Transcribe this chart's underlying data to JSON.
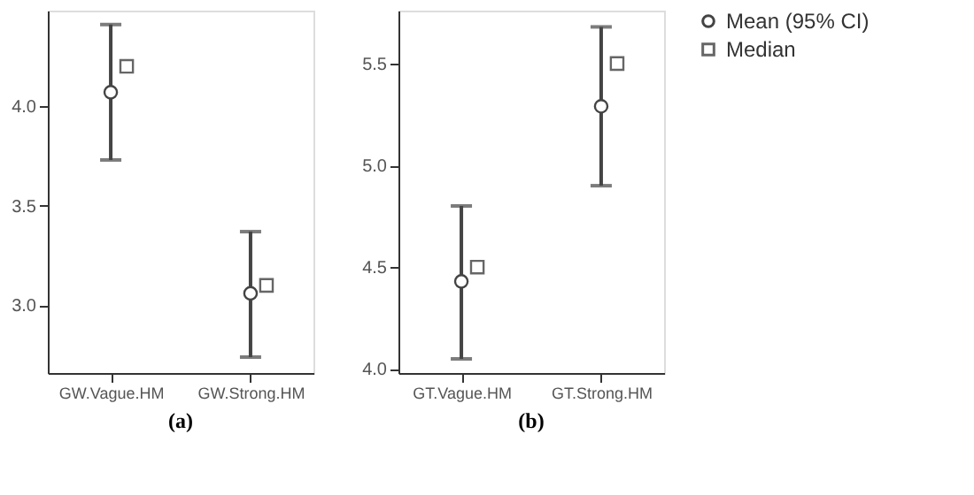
{
  "chart_data": [
    {
      "type": "scatter",
      "categories": [
        "GW.Vague.HM",
        "GW.Strong.HM"
      ],
      "xlabel": "(a)",
      "ylim": [
        2.66,
        4.48
      ],
      "yticks": [
        {
          "value": 3.0,
          "label": "3.0"
        },
        {
          "value": 3.5,
          "label": "3.5"
        },
        {
          "value": 4.0,
          "label": "4.0"
        }
      ],
      "grid": false,
      "legend": "right",
      "series": [
        {
          "name": "Mean (95% CI)",
          "color": "#444444",
          "marker": "circle",
          "values": [
            4.07,
            3.06
          ],
          "errors": [
            [
              3.73,
              4.41
            ],
            [
              2.74,
              3.37
            ]
          ]
        },
        {
          "name": "Median",
          "color": "#666666",
          "marker": "square",
          "values": [
            4.2,
            3.1
          ]
        }
      ]
    },
    {
      "type": "scatter",
      "categories": [
        "GT.Vague.HM",
        "GT.Strong.HM"
      ],
      "xlabel": "(b)",
      "ylim": [
        3.98,
        5.76
      ],
      "yticks": [
        {
          "value": 4.0,
          "label": "4.0"
        },
        {
          "value": 4.5,
          "label": "4.5"
        },
        {
          "value": 5.0,
          "label": "5.0"
        },
        {
          "value": 5.5,
          "label": "5.5"
        }
      ],
      "grid": false,
      "legend": "right",
      "series": [
        {
          "name": "Mean (95% CI)",
          "color": "#444444",
          "marker": "circle",
          "values": [
            4.43,
            5.29
          ],
          "errors": [
            [
              4.05,
              4.8
            ],
            [
              4.9,
              5.68
            ]
          ]
        },
        {
          "name": "Median",
          "color": "#666666",
          "marker": "square",
          "values": [
            4.5,
            5.5
          ]
        }
      ]
    }
  ]
}
